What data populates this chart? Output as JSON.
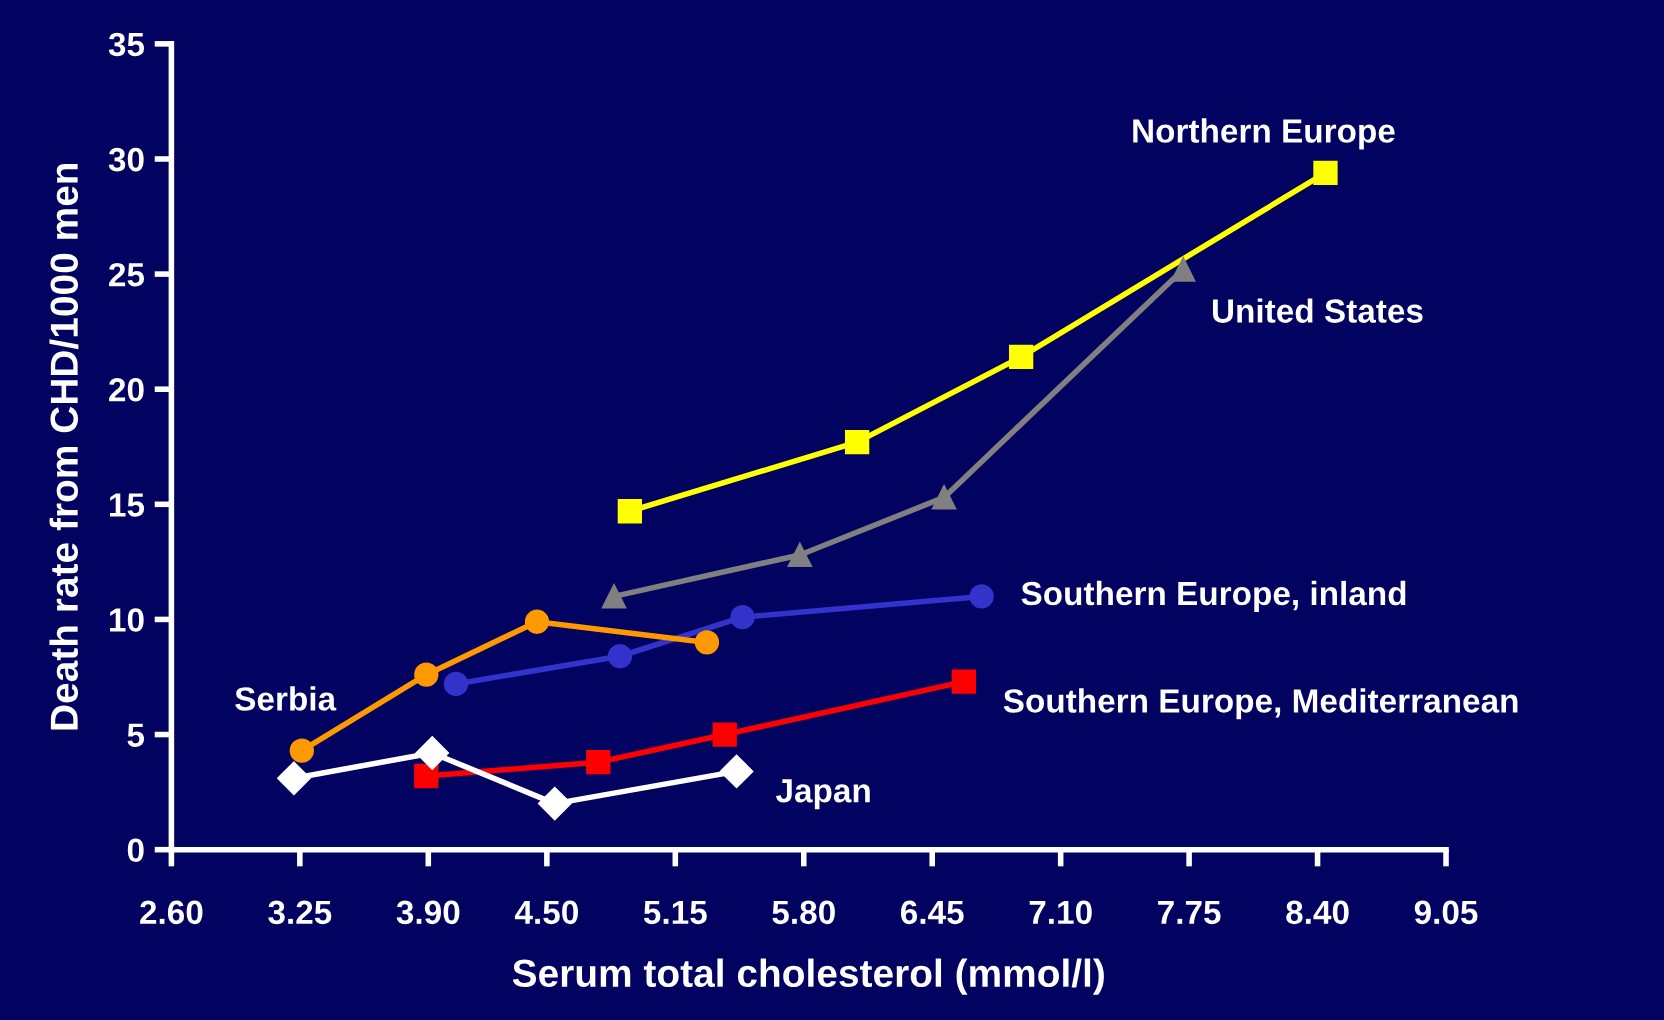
{
  "chart_data": {
    "type": "line",
    "xlabel": "Serum total cholesterol (mmol/l)",
    "ylabel": "Death rate from CHD/1000 men",
    "xlim": [
      2.6,
      9.05
    ],
    "xticks": [
      {
        "value": 2.6,
        "label": "2.60"
      },
      {
        "value": 3.25,
        "label": "3.25"
      },
      {
        "value": 3.9,
        "label": "3.90"
      },
      {
        "value": 4.5,
        "label": "4.50"
      },
      {
        "value": 5.15,
        "label": "5.15"
      },
      {
        "value": 5.8,
        "label": "5.80"
      },
      {
        "value": 6.45,
        "label": "6.45"
      },
      {
        "value": 7.1,
        "label": "7.10"
      },
      {
        "value": 7.75,
        "label": "7.75"
      },
      {
        "value": 8.4,
        "label": "8.40"
      },
      {
        "value": 9.05,
        "label": "9.05"
      }
    ],
    "ylim": [
      0,
      35
    ],
    "yticks": [
      0,
      5,
      10,
      15,
      20,
      25,
      30,
      35
    ],
    "grid": false,
    "legend": false,
    "series": [
      {
        "name": "Northern Europe",
        "color": "#ffff00",
        "marker": "square",
        "x": [
          4.92,
          6.07,
          6.9,
          8.44
        ],
        "values": [
          14.7,
          17.7,
          21.4,
          29.4
        ]
      },
      {
        "name": "United States",
        "color": "#808080",
        "marker": "triangle",
        "x": [
          4.84,
          5.78,
          6.51,
          7.72
        ],
        "values": [
          11.0,
          12.8,
          15.3,
          25.2
        ]
      },
      {
        "name": "Southern Europe, inland",
        "color": "#3333cc",
        "marker": "circle",
        "x": [
          4.04,
          4.87,
          5.49,
          6.7
        ],
        "values": [
          7.2,
          8.4,
          10.1,
          11.0
        ]
      },
      {
        "name": "Serbia",
        "color": "#ff9900",
        "marker": "circle",
        "x": [
          3.26,
          3.89,
          4.45,
          5.31
        ],
        "values": [
          4.3,
          7.6,
          9.9,
          9.0
        ]
      },
      {
        "name": "Southern Europe, Mediterranean",
        "color": "#ff0000",
        "marker": "square",
        "x": [
          3.89,
          4.76,
          5.4,
          6.61
        ],
        "values": [
          3.2,
          3.8,
          5.0,
          7.3
        ]
      },
      {
        "name": "Japan",
        "color": "#ffffff",
        "marker": "diamond",
        "x": [
          3.22,
          3.92,
          4.54,
          5.46
        ],
        "values": [
          3.1,
          4.2,
          2.0,
          3.4
        ]
      }
    ]
  }
}
